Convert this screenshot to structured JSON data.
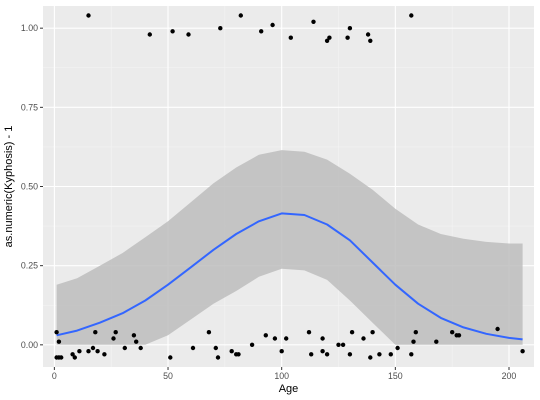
{
  "chart_data": {
    "type": "scatter",
    "title": "",
    "xlabel": "Age",
    "ylabel": "as.numeric(Kyphosis) - 1",
    "xlim": [
      -5,
      211
    ],
    "ylim": [
      -0.07,
      1.07
    ],
    "x_ticks": [
      0,
      50,
      100,
      150,
      200
    ],
    "x_tick_labels": [
      "0",
      "50",
      "100",
      "150",
      "200"
    ],
    "y_ticks": [
      0,
      0.25,
      0.5,
      0.75,
      1
    ],
    "y_tick_labels": [
      "0.00",
      "0.25",
      "0.50",
      "0.75",
      "1.00"
    ],
    "grid": true,
    "legend": "none",
    "colors": {
      "panel": "#ebebeb",
      "grid_major": "#ffffff",
      "grid_minor": "#f4f4f4",
      "points": "#000000",
      "smooth_line": "#3366ff",
      "ribbon": "#bdbdbd"
    },
    "points": [
      {
        "x": 1,
        "y": -0.04
      },
      {
        "x": 1,
        "y": 0.04
      },
      {
        "x": 2,
        "y": 0.01
      },
      {
        "x": 2,
        "y": -0.04
      },
      {
        "x": 3,
        "y": -0.04
      },
      {
        "x": 8,
        "y": -0.03
      },
      {
        "x": 9,
        "y": -0.04
      },
      {
        "x": 11,
        "y": -0.02
      },
      {
        "x": 15,
        "y": -0.02
      },
      {
        "x": 15,
        "y": 1.04
      },
      {
        "x": 17,
        "y": -0.01
      },
      {
        "x": 18,
        "y": 0.04
      },
      {
        "x": 19,
        "y": -0.02
      },
      {
        "x": 22,
        "y": -0.03
      },
      {
        "x": 26,
        "y": 0.02
      },
      {
        "x": 27,
        "y": 0.04
      },
      {
        "x": 31,
        "y": -0.01
      },
      {
        "x": 35,
        "y": 0.03
      },
      {
        "x": 36,
        "y": 0.01
      },
      {
        "x": 38,
        "y": -0.01
      },
      {
        "x": 42,
        "y": 0.98
      },
      {
        "x": 51,
        "y": -0.04
      },
      {
        "x": 52,
        "y": 0.99
      },
      {
        "x": 59,
        "y": 0.98
      },
      {
        "x": 61,
        "y": -0.01
      },
      {
        "x": 68,
        "y": 0.04
      },
      {
        "x": 71,
        "y": -0.01
      },
      {
        "x": 72,
        "y": -0.04
      },
      {
        "x": 73,
        "y": 1.0
      },
      {
        "x": 78,
        "y": -0.02
      },
      {
        "x": 80,
        "y": -0.03
      },
      {
        "x": 81,
        "y": -0.03
      },
      {
        "x": 82,
        "y": 1.04
      },
      {
        "x": 87,
        "y": 0.0
      },
      {
        "x": 91,
        "y": 0.99
      },
      {
        "x": 93,
        "y": 0.03
      },
      {
        "x": 96,
        "y": 1.01
      },
      {
        "x": 97,
        "y": 0.02
      },
      {
        "x": 100,
        "y": -0.02
      },
      {
        "x": 102,
        "y": 0.02
      },
      {
        "x": 104,
        "y": 0.97
      },
      {
        "x": 112,
        "y": 0.04
      },
      {
        "x": 113,
        "y": -0.03
      },
      {
        "x": 114,
        "y": 1.02
      },
      {
        "x": 118,
        "y": 0.02
      },
      {
        "x": 118,
        "y": -0.02
      },
      {
        "x": 120,
        "y": -0.03
      },
      {
        "x": 120,
        "y": 0.96
      },
      {
        "x": 121,
        "y": 0.97
      },
      {
        "x": 125,
        "y": 0.0
      },
      {
        "x": 127,
        "y": 0.0
      },
      {
        "x": 129,
        "y": 0.97
      },
      {
        "x": 130,
        "y": 1.0
      },
      {
        "x": 130,
        "y": -0.03
      },
      {
        "x": 131,
        "y": 0.04
      },
      {
        "x": 136,
        "y": 0.02
      },
      {
        "x": 138,
        "y": 0.98
      },
      {
        "x": 139,
        "y": 0.96
      },
      {
        "x": 139,
        "y": -0.04
      },
      {
        "x": 140,
        "y": 0.04
      },
      {
        "x": 143,
        "y": -0.03
      },
      {
        "x": 148,
        "y": -0.03
      },
      {
        "x": 151,
        "y": -0.01
      },
      {
        "x": 157,
        "y": 1.04
      },
      {
        "x": 157,
        "y": -0.03
      },
      {
        "x": 158,
        "y": 0.01
      },
      {
        "x": 159,
        "y": 0.04
      },
      {
        "x": 168,
        "y": 0.01
      },
      {
        "x": 175,
        "y": 0.04
      },
      {
        "x": 177,
        "y": 0.03
      },
      {
        "x": 178,
        "y": 0.03
      },
      {
        "x": 195,
        "y": 0.05
      },
      {
        "x": 206,
        "y": -0.02
      }
    ],
    "smooth": {
      "x": [
        1,
        10,
        20,
        30,
        40,
        50,
        60,
        70,
        80,
        90,
        100,
        110,
        120,
        130,
        140,
        150,
        160,
        170,
        180,
        190,
        200,
        206
      ],
      "y": [
        0.03,
        0.045,
        0.07,
        0.1,
        0.14,
        0.19,
        0.245,
        0.3,
        0.35,
        0.39,
        0.415,
        0.41,
        0.38,
        0.33,
        0.26,
        0.19,
        0.13,
        0.085,
        0.055,
        0.035,
        0.022,
        0.017
      ],
      "upper": [
        0.19,
        0.21,
        0.25,
        0.29,
        0.34,
        0.39,
        0.45,
        0.51,
        0.56,
        0.6,
        0.615,
        0.61,
        0.585,
        0.54,
        0.49,
        0.43,
        0.38,
        0.35,
        0.335,
        0.325,
        0.32,
        0.32
      ],
      "lower": [
        0.0,
        0.0,
        0.0,
        0.0,
        0.0,
        0.03,
        0.08,
        0.13,
        0.17,
        0.215,
        0.24,
        0.235,
        0.205,
        0.14,
        0.07,
        0.0,
        0.0,
        0.0,
        0.0,
        0.0,
        0.0,
        0.0
      ]
    }
  }
}
